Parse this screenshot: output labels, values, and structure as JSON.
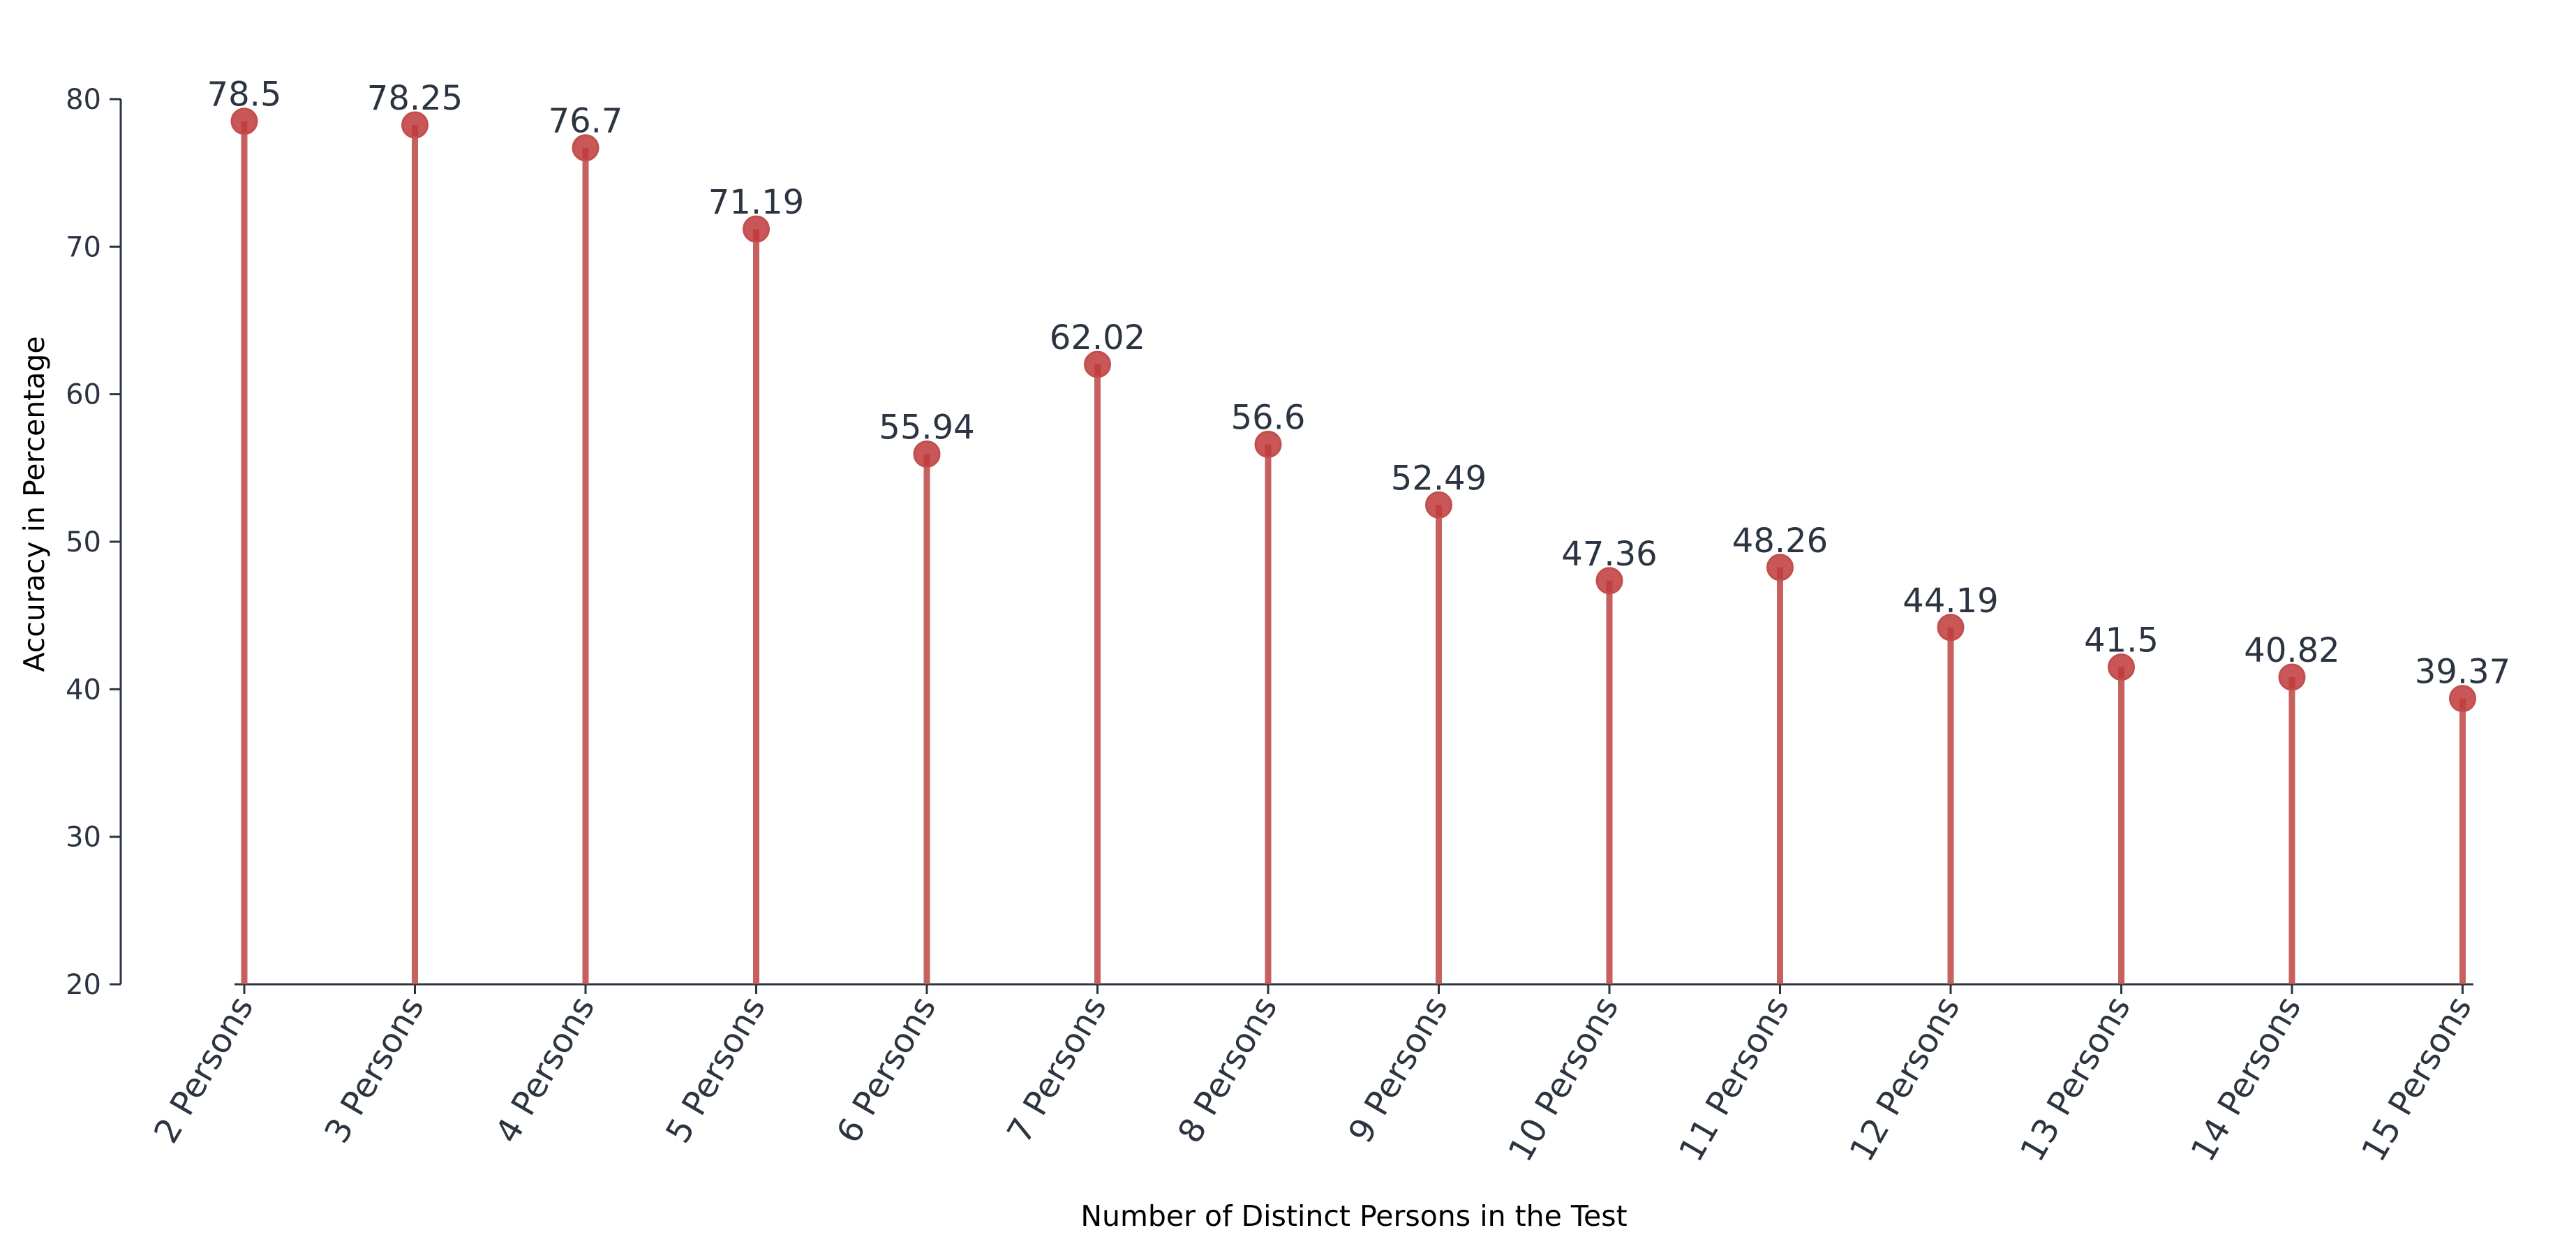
{
  "chart_data": {
    "type": "lollipop",
    "categories": [
      "2 Persons",
      "3 Persons",
      "4 Persons",
      "5 Persons",
      "6 Persons",
      "7 Persons",
      "8 Persons",
      "9 Persons",
      "10 Persons",
      "11 Persons",
      "12 Persons",
      "13 Persons",
      "14 Persons",
      "15 Persons"
    ],
    "values": [
      78.5,
      78.25,
      76.7,
      71.19,
      55.94,
      62.02,
      56.6,
      52.49,
      47.36,
      48.26,
      44.19,
      41.5,
      40.82,
      39.37
    ],
    "data_labels": [
      "78.5",
      "78.25",
      "76.7",
      "71.19",
      "55.94",
      "62.02",
      "56.6",
      "52.49",
      "47.36",
      "48.26",
      "44.19",
      "41.5",
      "40.82",
      "39.37"
    ],
    "xlabel": "Number of Distinct Persons in the Test",
    "ylabel": "Accuracy in Percentage",
    "ylim": [
      20,
      80
    ],
    "yticks": [
      20,
      30,
      40,
      50,
      60,
      70,
      80
    ],
    "grid": false,
    "legend": "none",
    "colors": {
      "stem": "#c0504d",
      "marker": "#c0393b",
      "axis": "#2b3440",
      "text": "#2b3440"
    }
  }
}
